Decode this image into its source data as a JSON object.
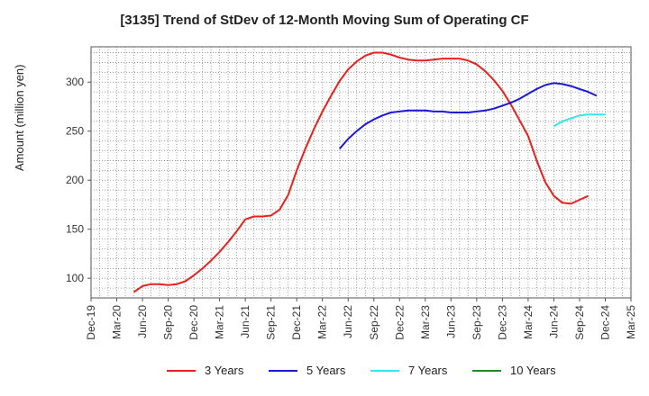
{
  "chart_data": {
    "type": "line",
    "title": "[3135]  Trend of StDev of 12-Month Moving Sum of Operating CF",
    "xlabel": "",
    "ylabel": "Amount (million yen)",
    "ylim": [
      80,
      336
    ],
    "yticks": [
      100,
      150,
      200,
      250,
      300
    ],
    "grid": true,
    "legend_position": "bottom",
    "x_ticks": [
      "Dec-19",
      "Mar-20",
      "Jun-20",
      "Sep-20",
      "Dec-20",
      "Mar-21",
      "Jun-21",
      "Sep-21",
      "Dec-21",
      "Mar-22",
      "Jun-22",
      "Sep-22",
      "Dec-22",
      "Mar-23",
      "Jun-23",
      "Sep-23",
      "Dec-23",
      "Mar-24",
      "Jun-24",
      "Sep-24",
      "Dec-24",
      "Mar-25"
    ],
    "x_months": [
      "Dec-19",
      "Jan-20",
      "Feb-20",
      "Mar-20",
      "Apr-20",
      "May-20",
      "Jun-20",
      "Jul-20",
      "Aug-20",
      "Sep-20",
      "Oct-20",
      "Nov-20",
      "Dec-20",
      "Jan-21",
      "Feb-21",
      "Mar-21",
      "Apr-21",
      "May-21",
      "Jun-21",
      "Jul-21",
      "Aug-21",
      "Sep-21",
      "Oct-21",
      "Nov-21",
      "Dec-21",
      "Jan-22",
      "Feb-22",
      "Mar-22",
      "Apr-22",
      "May-22",
      "Jun-22",
      "Jul-22",
      "Aug-22",
      "Sep-22",
      "Oct-22",
      "Nov-22",
      "Dec-22",
      "Jan-23",
      "Feb-23",
      "Mar-23",
      "Apr-23",
      "May-23",
      "Jun-23",
      "Jul-23",
      "Aug-23",
      "Sep-23",
      "Oct-23",
      "Nov-23",
      "Dec-23",
      "Jan-24",
      "Feb-24",
      "Mar-24",
      "Apr-24",
      "May-24",
      "Jun-24",
      "Jul-24",
      "Aug-24",
      "Sep-24",
      "Oct-24",
      "Nov-24",
      "Dec-24",
      "Jan-25",
      "Feb-25",
      "Mar-25"
    ],
    "series": [
      {
        "name": "3 Years",
        "color": "#e8201e",
        "start": "May-20",
        "values": [
          86,
          92,
          94,
          94,
          93,
          94,
          97,
          103,
          110,
          118,
          127,
          137,
          148,
          160,
          163,
          163,
          164,
          170,
          185,
          210,
          232,
          252,
          270,
          286,
          301,
          313,
          321,
          327,
          330,
          330,
          328,
          325,
          323,
          322,
          322,
          323,
          324,
          324,
          324,
          322,
          318,
          311,
          302,
          291,
          277,
          261,
          245,
          220,
          198,
          184,
          177,
          176,
          180,
          184
        ]
      },
      {
        "name": "5 Years",
        "color": "#1a1ad6",
        "start": "May-22",
        "values": [
          232,
          242,
          250,
          257,
          262,
          266,
          269,
          270,
          271,
          271,
          271,
          270,
          270,
          269,
          269,
          269,
          270,
          271,
          273,
          276,
          279,
          283,
          288,
          293,
          297,
          299,
          298,
          296,
          293,
          290,
          286
        ]
      },
      {
        "name": "7 Years",
        "color": "#2ee8ee",
        "start": "Jun-24",
        "values": [
          255,
          260,
          263,
          266,
          267,
          267,
          267
        ]
      },
      {
        "name": "10 Years",
        "color": "#1f8a1f",
        "start": "Dec-24",
        "values": []
      }
    ]
  }
}
